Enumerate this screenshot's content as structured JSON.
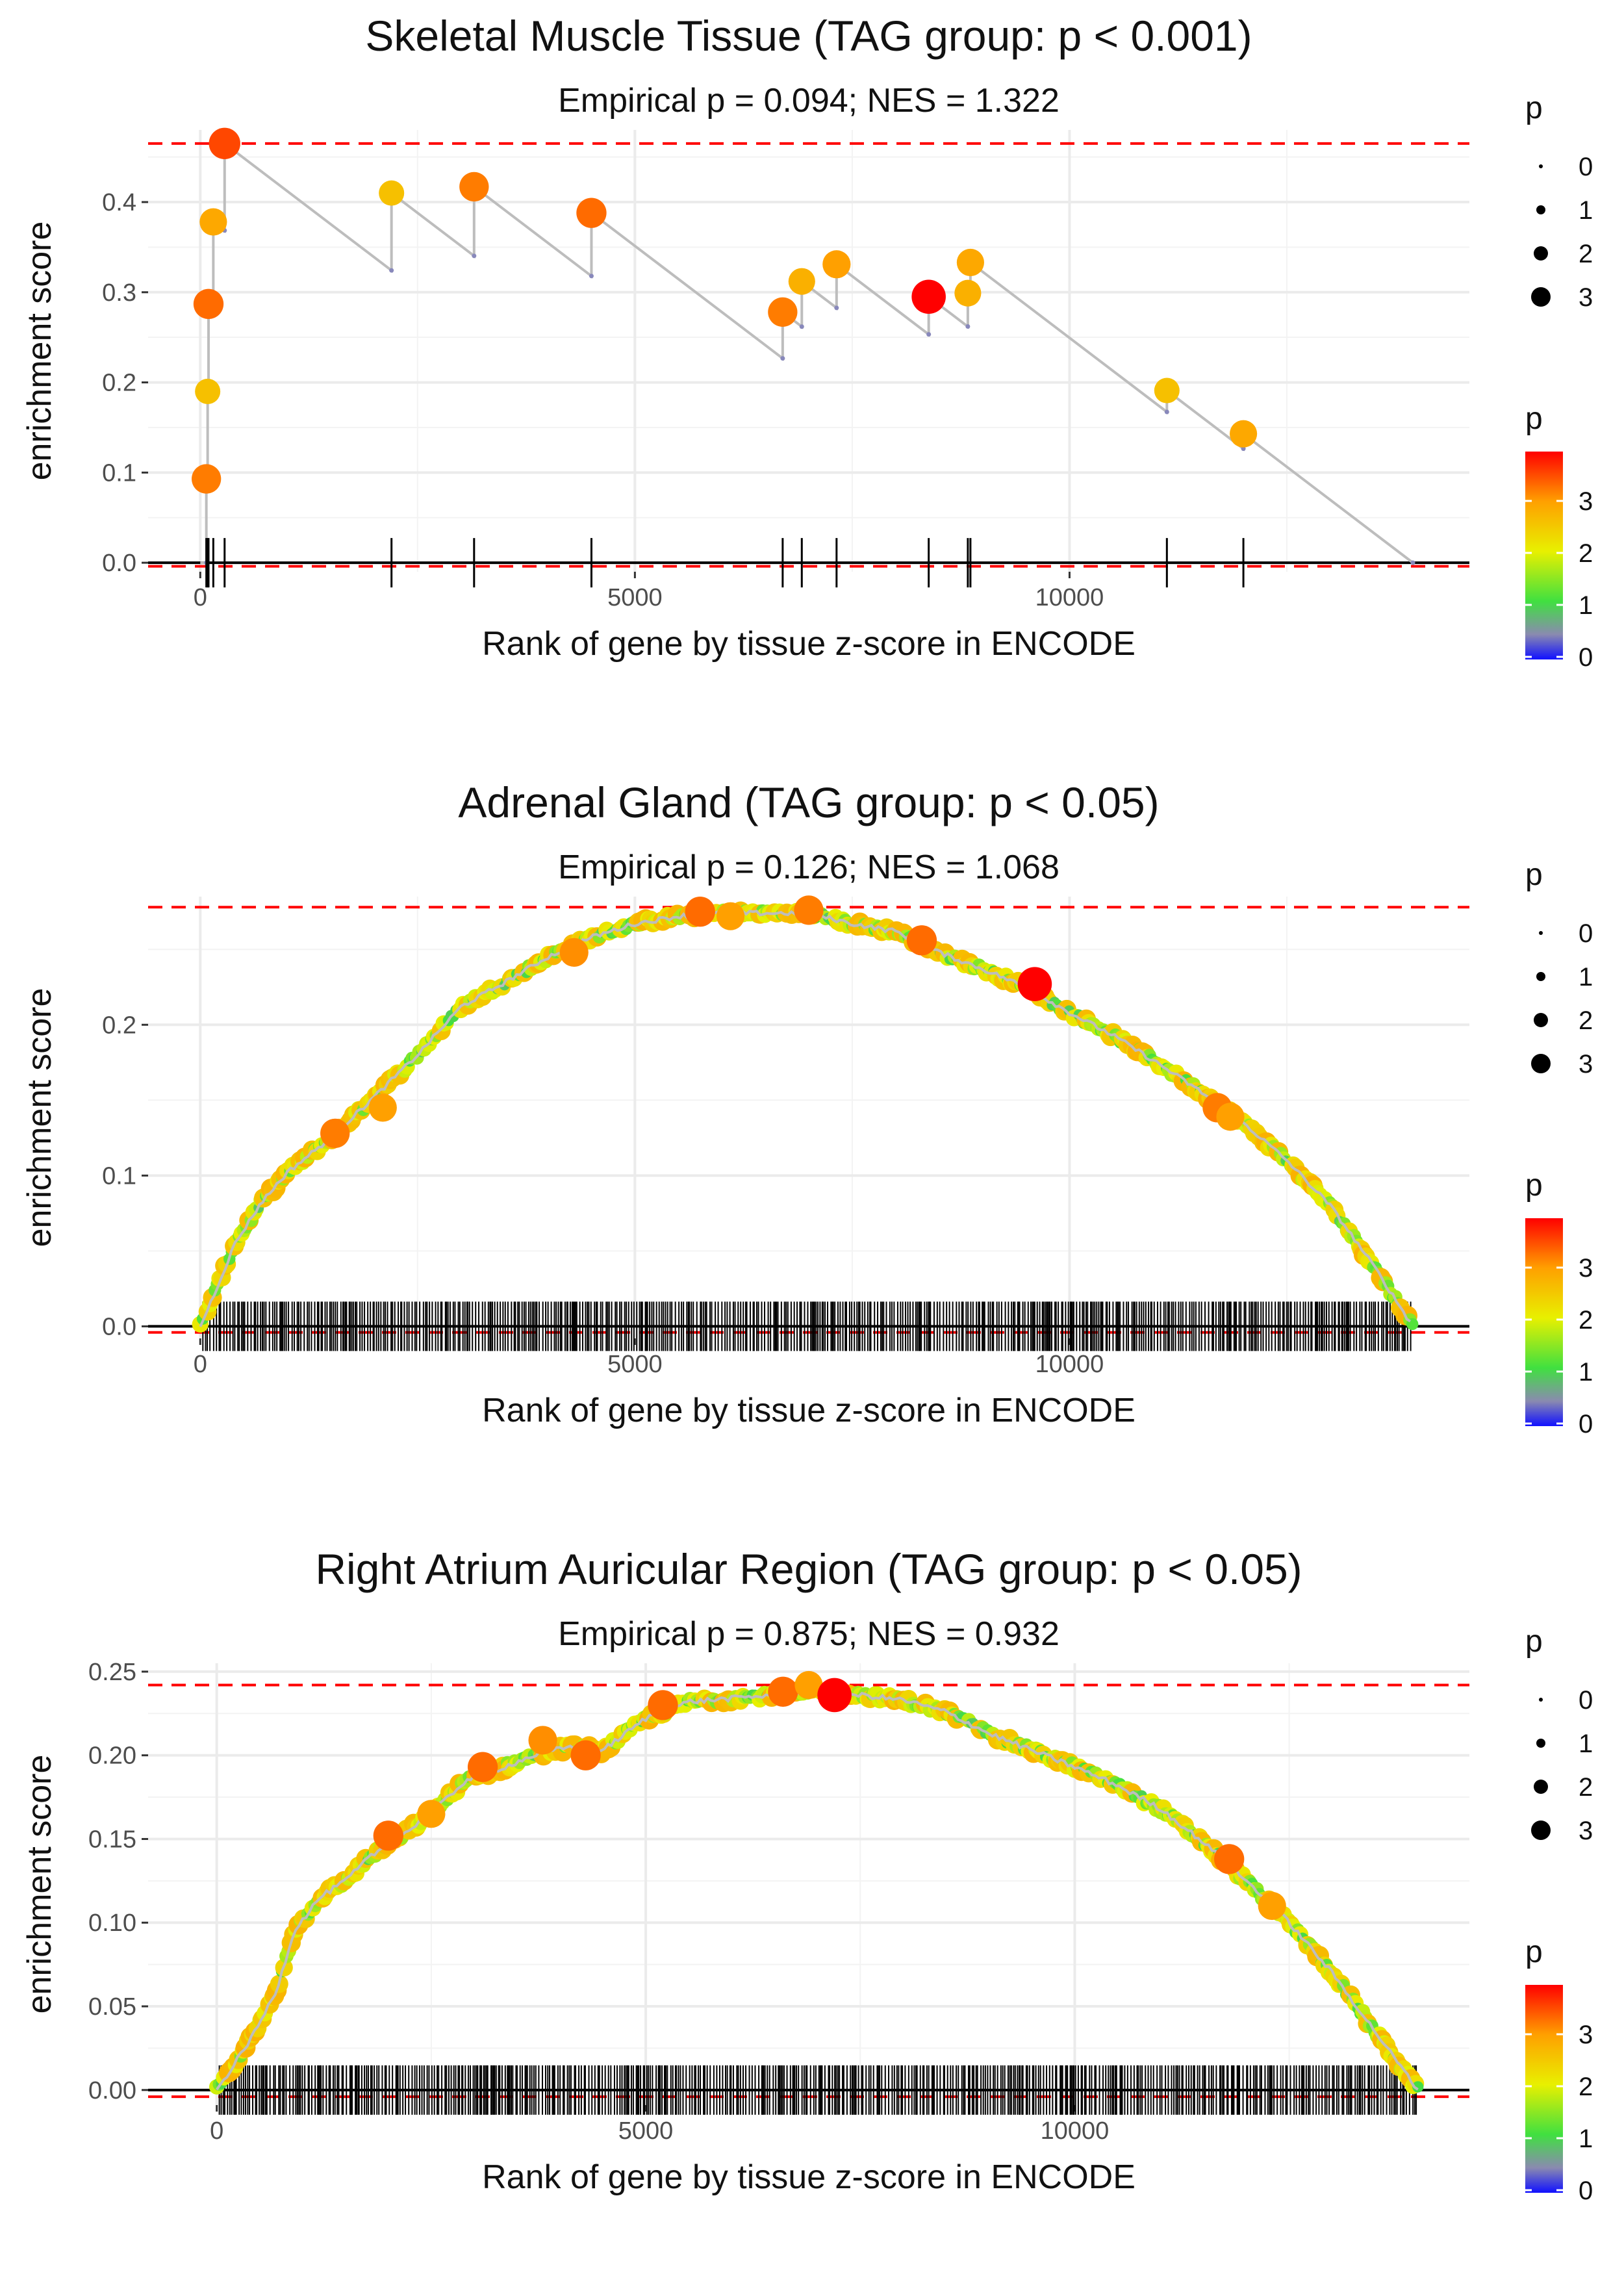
{
  "chart_data": [
    {
      "type": "line",
      "title": "Skeletal Muscle Tissue (TAG group: p < 0.001)",
      "subtitle": "Empirical p = 0.094; NES = 1.322",
      "xlabel": "Rank of gene by tissue z-score in ENCODE",
      "ylabel": "enrichment score",
      "xlim": [
        -600,
        14600
      ],
      "ylim": [
        -0.01,
        0.48
      ],
      "x_ticks": [
        0,
        5000,
        10000
      ],
      "x_tick_labels": [
        "0",
        "5000",
        "10000"
      ],
      "y_ticks": [
        0,
        0.1,
        0.2,
        0.3,
        0.4
      ],
      "y_tick_labels": [
        "0.0",
        "0.1",
        "0.2",
        "0.3",
        "0.4"
      ],
      "grid": true,
      "max_es_line": 0.465,
      "min_es_line": -0.004,
      "end_x": 13950,
      "hits": [
        {
          "x": 70,
          "es": 0.093,
          "p": 3.2
        },
        {
          "x": 85,
          "es": 0.19,
          "p": 2.6
        },
        {
          "x": 95,
          "es": 0.287,
          "p": 3.3
        },
        {
          "x": 150,
          "es": 0.378,
          "p": 2.9
        },
        {
          "x": 280,
          "es": 0.465,
          "p": 3.5
        },
        {
          "x": 2200,
          "es": 0.41,
          "p": 2.6
        },
        {
          "x": 3150,
          "es": 0.417,
          "p": 3.2
        },
        {
          "x": 4500,
          "es": 0.388,
          "p": 3.3
        },
        {
          "x": 6700,
          "es": 0.278,
          "p": 3.2
        },
        {
          "x": 6920,
          "es": 0.312,
          "p": 2.8
        },
        {
          "x": 7320,
          "es": 0.331,
          "p": 3.0
        },
        {
          "x": 8380,
          "es": 0.295,
          "p": 3.9
        },
        {
          "x": 8830,
          "es": 0.299,
          "p": 2.8
        },
        {
          "x": 8860,
          "es": 0.333,
          "p": 2.9
        },
        {
          "x": 11120,
          "es": 0.191,
          "p": 2.6
        },
        {
          "x": 12000,
          "es": 0.143,
          "p": 2.9
        }
      ],
      "legend_size": {
        "title": "p",
        "labels": [
          "0",
          "1",
          "2",
          "3"
        ]
      },
      "legend_color": {
        "title": "p",
        "labels": [
          "3",
          "2",
          "1",
          "0"
        ]
      }
    },
    {
      "type": "line",
      "title": "Adrenal Gland (TAG group: p < 0.05)",
      "subtitle": "Empirical p = 0.126; NES = 1.068",
      "xlabel": "Rank of gene by tissue z-score in ENCODE",
      "ylabel": "enrichment score",
      "xlim": [
        -600,
        14600
      ],
      "ylim": [
        -0.008,
        0.285
      ],
      "x_ticks": [
        0,
        5000,
        10000
      ],
      "x_tick_labels": [
        "0",
        "5000",
        "10000"
      ],
      "y_ticks": [
        0,
        0.1,
        0.2
      ],
      "y_tick_labels": [
        "0.0",
        "0.1",
        "0.2"
      ],
      "grid": true,
      "max_es_line": 0.278,
      "min_es_line": -0.004,
      "end_x": 13950,
      "curve": [
        [
          0,
          0.0
        ],
        [
          150,
          0.02
        ],
        [
          400,
          0.055
        ],
        [
          700,
          0.082
        ],
        [
          1000,
          0.102
        ],
        [
          1500,
          0.125
        ],
        [
          2000,
          0.152
        ],
        [
          2500,
          0.18
        ],
        [
          3000,
          0.212
        ],
        [
          3500,
          0.228
        ],
        [
          4000,
          0.245
        ],
        [
          4500,
          0.258
        ],
        [
          5000,
          0.267
        ],
        [
          5500,
          0.272
        ],
        [
          6000,
          0.274
        ],
        [
          6500,
          0.274
        ],
        [
          7000,
          0.274
        ],
        [
          7500,
          0.267
        ],
        [
          8000,
          0.262
        ],
        [
          8500,
          0.248
        ],
        [
          9000,
          0.237
        ],
        [
          9500,
          0.225
        ],
        [
          10000,
          0.208
        ],
        [
          10500,
          0.193
        ],
        [
          11000,
          0.175
        ],
        [
          11500,
          0.156
        ],
        [
          12000,
          0.135
        ],
        [
          12500,
          0.11
        ],
        [
          13000,
          0.08
        ],
        [
          13500,
          0.04
        ],
        [
          13950,
          0.0
        ]
      ],
      "highlights": [
        {
          "x": 1550,
          "es": 0.128,
          "p": 3.2
        },
        {
          "x": 2100,
          "es": 0.145,
          "p": 3.0
        },
        {
          "x": 4300,
          "es": 0.248,
          "p": 3.1
        },
        {
          "x": 5750,
          "es": 0.275,
          "p": 3.3
        },
        {
          "x": 6100,
          "es": 0.272,
          "p": 3.0
        },
        {
          "x": 7000,
          "es": 0.276,
          "p": 3.2
        },
        {
          "x": 8300,
          "es": 0.256,
          "p": 3.3
        },
        {
          "x": 9600,
          "es": 0.227,
          "p": 3.9
        },
        {
          "x": 11700,
          "es": 0.145,
          "p": 3.2
        },
        {
          "x": 11850,
          "es": 0.139,
          "p": 3.0
        }
      ],
      "legend_size": {
        "title": "p",
        "labels": [
          "0",
          "1",
          "2",
          "3"
        ]
      },
      "legend_color": {
        "title": "p",
        "labels": [
          "3",
          "2",
          "1",
          "0"
        ]
      }
    },
    {
      "type": "line",
      "title": "Right Atrium Auricular Region (TAG group: p < 0.05)",
      "subtitle": "Empirical p = 0.875; NES = 0.932",
      "xlabel": "Rank of gene by tissue z-score in ENCODE",
      "ylabel": "enrichment score",
      "xlim": [
        -800,
        14600
      ],
      "ylim": [
        -0.009,
        0.255
      ],
      "x_ticks": [
        0,
        5000,
        10000
      ],
      "x_tick_labels": [
        "0",
        "5000",
        "10000"
      ],
      "y_ticks": [
        0,
        0.05,
        0.1,
        0.15,
        0.2,
        0.25
      ],
      "y_tick_labels": [
        "0.00",
        "0.05",
        "0.10",
        "0.15",
        "0.20",
        "0.25"
      ],
      "grid": true,
      "max_es_line": 0.242,
      "min_es_line": -0.004,
      "end_x": 14000,
      "curve": [
        [
          0,
          0.0
        ],
        [
          200,
          0.015
        ],
        [
          450,
          0.035
        ],
        [
          700,
          0.06
        ],
        [
          900,
          0.095
        ],
        [
          1200,
          0.115
        ],
        [
          1500,
          0.125
        ],
        [
          1800,
          0.14
        ],
        [
          2100,
          0.15
        ],
        [
          2500,
          0.165
        ],
        [
          2900,
          0.185
        ],
        [
          3300,
          0.192
        ],
        [
          3700,
          0.2
        ],
        [
          4100,
          0.205
        ],
        [
          4500,
          0.203
        ],
        [
          5000,
          0.222
        ],
        [
          5500,
          0.232
        ],
        [
          6000,
          0.234
        ],
        [
          6500,
          0.236
        ],
        [
          7000,
          0.238
        ],
        [
          7500,
          0.236
        ],
        [
          8000,
          0.233
        ],
        [
          8500,
          0.226
        ],
        [
          9000,
          0.213
        ],
        [
          9500,
          0.203
        ],
        [
          10000,
          0.193
        ],
        [
          10500,
          0.182
        ],
        [
          11000,
          0.168
        ],
        [
          11500,
          0.148
        ],
        [
          12000,
          0.125
        ],
        [
          12500,
          0.1
        ],
        [
          13000,
          0.07
        ],
        [
          13500,
          0.035
        ],
        [
          14000,
          0.0
        ]
      ],
      "highlights": [
        {
          "x": 2000,
          "es": 0.152,
          "p": 3.3
        },
        {
          "x": 2500,
          "es": 0.165,
          "p": 3.0
        },
        {
          "x": 3100,
          "es": 0.193,
          "p": 3.3
        },
        {
          "x": 3800,
          "es": 0.209,
          "p": 3.1
        },
        {
          "x": 4300,
          "es": 0.2,
          "p": 3.3
        },
        {
          "x": 5200,
          "es": 0.23,
          "p": 3.3
        },
        {
          "x": 6600,
          "es": 0.238,
          "p": 3.3
        },
        {
          "x": 6900,
          "es": 0.242,
          "p": 3.0
        },
        {
          "x": 7200,
          "es": 0.236,
          "p": 3.9
        },
        {
          "x": 11800,
          "es": 0.138,
          "p": 3.3
        },
        {
          "x": 12300,
          "es": 0.11,
          "p": 3.0
        }
      ],
      "legend_size": {
        "title": "p",
        "labels": [
          "0",
          "1",
          "2",
          "3"
        ]
      },
      "legend_color": {
        "title": "p",
        "labels": [
          "3",
          "2",
          "1",
          "0"
        ]
      }
    }
  ]
}
